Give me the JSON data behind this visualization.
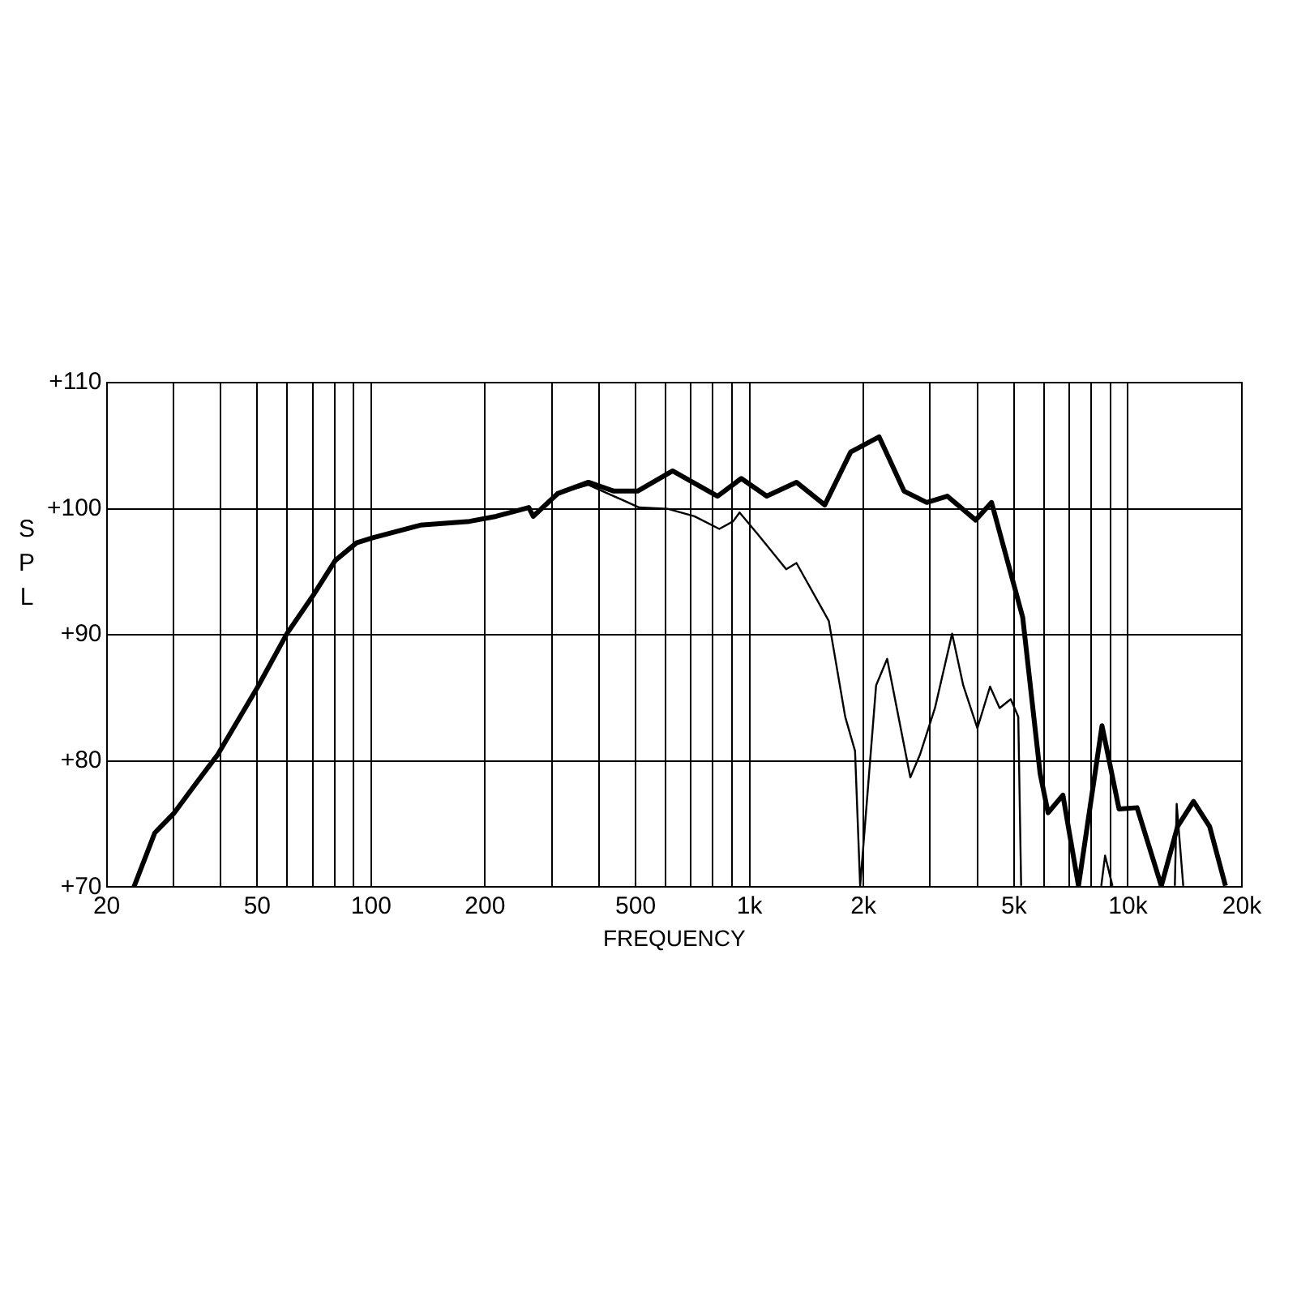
{
  "chart_data": {
    "type": "line",
    "xlabel": "FREQUENCY",
    "ylabel": "SPL",
    "log": "x",
    "grid": true,
    "legend": false,
    "marker": "none",
    "line_style": "solid",
    "xlim": [
      20,
      20000
    ],
    "ylim": [
      70,
      110
    ],
    "xticks": [
      20,
      {
        "value": 30,
        "label": null
      },
      {
        "value": 40,
        "label": null
      },
      50,
      {
        "value": 60,
        "label": null
      },
      {
        "value": 70,
        "label": null
      },
      {
        "value": 80,
        "label": null
      },
      {
        "value": 90,
        "label": null
      },
      100,
      200,
      {
        "value": 300,
        "label": null
      },
      {
        "value": 400,
        "label": null
      },
      500,
      {
        "value": 600,
        "label": null
      },
      {
        "value": 700,
        "label": null
      },
      {
        "value": 800,
        "label": null
      },
      {
        "value": 900,
        "label": null
      },
      {
        "value": 1000,
        "label": "1k"
      },
      {
        "value": 2000,
        "label": "2k"
      },
      {
        "value": 3000,
        "label": null
      },
      {
        "value": 4000,
        "label": null
      },
      {
        "value": 5000,
        "label": "5k"
      },
      {
        "value": 6000,
        "label": null
      },
      {
        "value": 7000,
        "label": null
      },
      {
        "value": 8000,
        "label": null
      },
      {
        "value": 9000,
        "label": null
      },
      {
        "value": 10000,
        "label": "10k"
      },
      {
        "value": 20000,
        "label": "20k"
      }
    ],
    "yticks": [
      {
        "value": 70,
        "label": "+70"
      },
      {
        "value": 80,
        "label": "+80"
      },
      {
        "value": 90,
        "label": "+90"
      },
      {
        "value": 100,
        "label": "+100"
      },
      {
        "value": 110,
        "label": "+110"
      }
    ],
    "series": [
      {
        "color": "#000000",
        "x": [
          23.6,
          26.8,
          30.2,
          34,
          39.3,
          50.2,
          59.9,
          70.5,
          80.4,
          91.5,
          101,
          135,
          182,
          214,
          261,
          268,
          311,
          375,
          438,
          506,
          626,
          823,
          951,
          1110,
          1330,
          1580,
          1850,
          2200,
          2560,
          2940,
          3330,
          3960,
          4360,
          5270,
          5860,
          6150,
          6730,
          7400,
          8540,
          9470,
          10570,
          12250,
          13520,
          14900,
          16440,
          18100
        ],
        "values": [
          70,
          74.3,
          75.9,
          78,
          80.5,
          85.9,
          90.1,
          93.2,
          95.9,
          97.3,
          97.7,
          98.7,
          99,
          99.4,
          100.1,
          99.4,
          101.2,
          102.1,
          101.4,
          101.4,
          103,
          101,
          102.4,
          101,
          102.1,
          100.3,
          104.5,
          105.7,
          101.4,
          100.5,
          101,
          99.1,
          100.5,
          91.4,
          79,
          75.9,
          77.3,
          70.1,
          82.8,
          76.2,
          76.3,
          70.1,
          74.8,
          76.8,
          74.8,
          70.1
        ]
      },
      {
        "color": "#000000",
        "x": [
          23.6,
          26.8,
          30.2,
          34,
          39.3,
          50.2,
          59.9,
          70.5,
          80.4,
          91.5,
          101,
          135,
          182,
          214,
          261,
          268,
          311,
          375,
          511,
          607,
          715,
          832,
          905,
          941,
          1050,
          1250,
          1330,
          1620,
          1790,
          1900,
          1960,
          2160,
          2310,
          2660,
          2820,
          3090,
          3430,
          3670,
          4000,
          4320,
          4580,
          4900,
          5130,
          5220,
          7000,
          8500,
          8700,
          9100,
          11000,
          13300,
          13450,
          14000
        ],
        "values": [
          70,
          74.3,
          75.9,
          78,
          80.5,
          85.9,
          90.1,
          93.2,
          95.9,
          97.3,
          97.7,
          98.7,
          99,
          99.4,
          100.1,
          99.4,
          101.2,
          101.9,
          100.1,
          100,
          99.4,
          98.4,
          99,
          99.7,
          98,
          95.2,
          95.7,
          91.1,
          83.5,
          80.8,
          70.1,
          86,
          88.1,
          78.7,
          80.5,
          84.2,
          90.1,
          86,
          82.6,
          85.9,
          84.2,
          84.9,
          83.5,
          70.1,
          null,
          70.1,
          72.5,
          70.1,
          null,
          70.1,
          76.6,
          70.1
        ]
      }
    ]
  }
}
